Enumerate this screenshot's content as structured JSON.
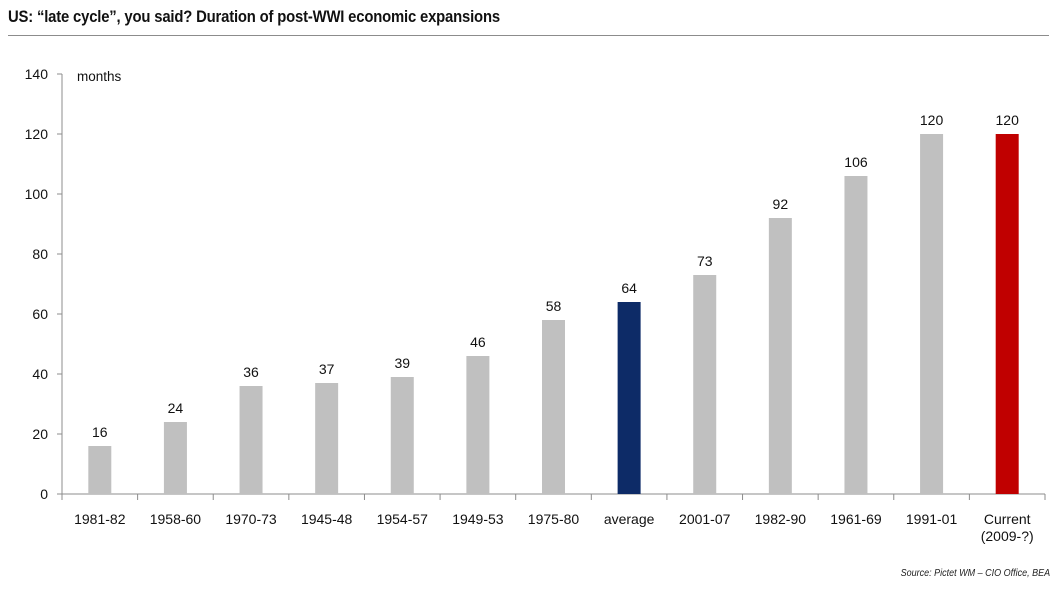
{
  "chart_data": {
    "type": "bar",
    "title": "US: “late cycle”, you said? Duration of post-WWI economic expansions",
    "ylabel": "months",
    "xlabel": "",
    "ylim": [
      0,
      140
    ],
    "yticks": [
      0,
      20,
      40,
      60,
      80,
      100,
      120,
      140
    ],
    "grid": false,
    "categories": [
      "1981-82",
      "1958-60",
      "1970-73",
      "1945-48",
      "1954-57",
      "1949-53",
      "1975-80",
      "average",
      "2001-07",
      "1982-90",
      "1961-69",
      "1991-01",
      "Current (2009-?)"
    ],
    "category_lines": [
      [
        "1981-82"
      ],
      [
        "1958-60"
      ],
      [
        "1970-73"
      ],
      [
        "1945-48"
      ],
      [
        "1954-57"
      ],
      [
        "1949-53"
      ],
      [
        "1975-80"
      ],
      [
        "average"
      ],
      [
        "2001-07"
      ],
      [
        "1982-90"
      ],
      [
        "1961-69"
      ],
      [
        "1991-01"
      ],
      [
        "Current",
        "(2009-?)"
      ]
    ],
    "values": [
      16,
      24,
      36,
      37,
      39,
      46,
      58,
      64,
      73,
      92,
      106,
      120,
      120
    ],
    "data_labels": [
      "16",
      "24",
      "36",
      "37",
      "39",
      "46",
      "58",
      "64",
      "73",
      "92",
      "106",
      "120",
      "120"
    ],
    "colors": {
      "default": "#c0c0c0",
      "average": "#0d2b67",
      "current": "#c00000",
      "axis": "#8c8c8c",
      "text": "#111111"
    },
    "bar_color_keys": [
      "default",
      "default",
      "default",
      "default",
      "default",
      "default",
      "default",
      "average",
      "default",
      "default",
      "default",
      "default",
      "current"
    ]
  },
  "source": "Source: Pictet WM – CIO Office,  BEA"
}
